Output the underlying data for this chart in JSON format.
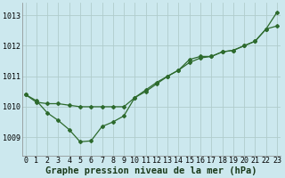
{
  "title": "Graphe pression niveau de la mer (hPa)",
  "background_color": "#cce8ee",
  "grid_color": "#b0cccc",
  "line_color": "#2d6a2d",
  "x_ticks": [
    0,
    1,
    2,
    3,
    4,
    5,
    6,
    7,
    8,
    9,
    10,
    11,
    12,
    13,
    14,
    15,
    16,
    17,
    18,
    19,
    20,
    21,
    22,
    23
  ],
  "y_ticks": [
    1009,
    1010,
    1011,
    1012,
    1013
  ],
  "ylim": [
    1008.4,
    1013.4
  ],
  "xlim": [
    -0.3,
    23.3
  ],
  "series1_x": [
    0,
    1,
    2,
    3,
    4,
    5,
    6,
    7,
    8,
    9,
    10,
    11,
    12,
    13,
    14,
    15,
    16,
    17,
    18,
    19,
    20,
    21,
    22,
    23
  ],
  "series1_y": [
    1010.4,
    1010.15,
    1010.1,
    1010.1,
    1010.05,
    1010.0,
    1010.0,
    1010.0,
    1010.0,
    1010.0,
    1010.3,
    1010.55,
    1010.8,
    1011.0,
    1011.2,
    1011.45,
    1011.6,
    1011.65,
    1011.8,
    1011.85,
    1012.0,
    1012.15,
    1012.55,
    1012.65
  ],
  "series2_x": [
    0,
    1,
    2,
    3,
    4,
    5,
    6,
    7,
    8,
    9,
    10,
    11,
    12,
    13,
    14,
    15,
    16,
    17,
    18,
    19,
    20,
    21,
    22,
    23
  ],
  "series2_y": [
    1010.4,
    1010.2,
    1009.8,
    1009.55,
    1009.25,
    1008.85,
    1008.88,
    1009.35,
    1009.5,
    1009.7,
    1010.3,
    1010.5,
    1010.75,
    1011.0,
    1011.2,
    1011.55,
    1011.65,
    1011.65,
    1011.8,
    1011.85,
    1012.0,
    1012.15,
    1012.55,
    1013.1
  ],
  "title_fontsize": 7.5,
  "tick_fontsize": 6.0
}
